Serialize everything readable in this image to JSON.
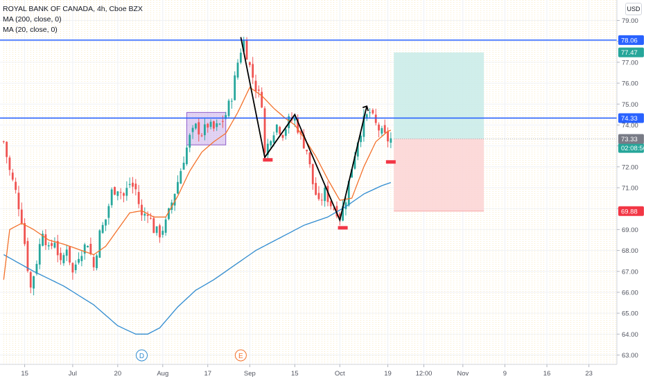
{
  "legend": {
    "symbol": "ROYAL BANK OF CANADA, 4h, Cboe BZX",
    "ma200": "MA (200, close, 0)",
    "ma20": "MA (20, close, 0)"
  },
  "currency": "USD",
  "colors": {
    "up": "#26a69a",
    "down": "#ef5350",
    "ma200": "#2f8bd0",
    "ma20": "#f3702a",
    "hline": "#2962ff",
    "pattern": "#000000",
    "marker": "#f23645",
    "box": "#9c6ade",
    "profit": "#c8ebe7",
    "loss": "#fcd4d4"
  },
  "chart_data": {
    "type": "candlestick",
    "title": "ROYAL BANK OF CANADA, 4h, Cboe BZX",
    "ylim": [
      62.6,
      79.75
    ],
    "y_ticks": [
      63.0,
      64.0,
      65.0,
      66.0,
      67.0,
      68.0,
      69.0,
      70.0,
      71.0,
      72.0,
      73.0,
      74.0,
      75.0,
      76.0,
      77.0,
      78.0,
      79.0
    ],
    "x_ticks": [
      "15",
      "Jul",
      "20",
      "Aug",
      "17",
      "Sep",
      "15",
      "Oct",
      "19",
      "12:00",
      "Nov",
      "9",
      "16",
      "23"
    ],
    "x_tick_index": [
      7,
      23,
      38,
      53,
      68,
      82,
      97,
      112,
      128,
      140,
      153,
      167,
      181,
      195
    ],
    "n_bars": 130,
    "markers": [
      {
        "label": "D",
        "index": 46
      },
      {
        "label": "E",
        "index": 79
      }
    ],
    "price_labels": [
      {
        "value": 78.06,
        "text": "78.06",
        "kind": "hline"
      },
      {
        "value": 77.47,
        "text": "77.47",
        "kind": "profit"
      },
      {
        "value": 74.33,
        "text": "74.33",
        "kind": "hline"
      },
      {
        "value": 73.34,
        "text": "73.34",
        "kind": "entry"
      },
      {
        "value": 72.9,
        "text": "02:08:56",
        "kind": "countdown"
      },
      {
        "value": 73.33,
        "text": "73.33",
        "kind": "last"
      },
      {
        "value": 69.88,
        "text": "69.88",
        "kind": "stop"
      }
    ],
    "horizontal_lines": [
      78.06,
      74.33
    ],
    "position": {
      "entry": 73.34,
      "target": 77.47,
      "stop": 69.88,
      "from_index": 130,
      "to_index": 160
    },
    "rectangle": {
      "from_index": 61,
      "to_index": 74,
      "top": 74.6,
      "bottom": 73.05
    },
    "pattern_line": [
      [
        79,
        78.2
      ],
      [
        87,
        72.45
      ],
      [
        97,
        74.5
      ],
      [
        112,
        69.45
      ],
      [
        121,
        74.9
      ]
    ],
    "bottom_markers": [
      [
        88,
        72.35
      ],
      [
        113,
        69.1
      ],
      [
        129,
        72.25
      ]
    ],
    "close_path": [
      [
        0,
        73.2
      ],
      [
        2,
        71.8
      ],
      [
        4,
        70.8
      ],
      [
        6,
        69.5
      ],
      [
        8,
        67.2
      ],
      [
        9,
        66.2
      ],
      [
        11,
        67.5
      ],
      [
        13,
        69.0
      ],
      [
        15,
        68.0
      ],
      [
        17,
        68.5
      ],
      [
        19,
        67.3
      ],
      [
        21,
        68.2
      ],
      [
        23,
        66.9
      ],
      [
        25,
        67.8
      ],
      [
        28,
        68.4
      ],
      [
        30,
        67.2
      ],
      [
        32,
        68.8
      ],
      [
        34,
        69.5
      ],
      [
        36,
        70.8
      ],
      [
        38,
        71.0
      ],
      [
        40,
        70.6
      ],
      [
        42,
        71.2
      ],
      [
        44,
        70.9
      ],
      [
        46,
        69.6
      ],
      [
        48,
        69.9
      ],
      [
        50,
        69.0
      ],
      [
        52,
        68.8
      ],
      [
        54,
        69.3
      ],
      [
        56,
        70.3
      ],
      [
        58,
        71.3
      ],
      [
        60,
        72.4
      ],
      [
        62,
        73.4
      ],
      [
        64,
        73.9
      ],
      [
        66,
        73.6
      ],
      [
        68,
        74.0
      ],
      [
        70,
        73.8
      ],
      [
        72,
        74.0
      ],
      [
        74,
        74.5
      ],
      [
        76,
        75.4
      ],
      [
        78,
        77.0
      ],
      [
        79,
        77.6
      ],
      [
        80,
        78.0
      ],
      [
        82,
        76.8
      ],
      [
        84,
        75.8
      ],
      [
        86,
        75.1
      ],
      [
        87,
        72.6
      ],
      [
        89,
        73.5
      ],
      [
        91,
        74.0
      ],
      [
        93,
        73.6
      ],
      [
        95,
        74.2
      ],
      [
        97,
        74.3
      ],
      [
        99,
        73.4
      ],
      [
        101,
        72.8
      ],
      [
        103,
        71.2
      ],
      [
        105,
        70.2
      ],
      [
        107,
        70.8
      ],
      [
        109,
        70.2
      ],
      [
        111,
        69.9
      ],
      [
        112,
        69.6
      ],
      [
        114,
        70.5
      ],
      [
        116,
        72.0
      ],
      [
        118,
        73.3
      ],
      [
        120,
        74.2
      ],
      [
        122,
        74.6
      ],
      [
        124,
        74.0
      ],
      [
        126,
        73.6
      ],
      [
        128,
        73.3
      ],
      [
        129,
        73.33
      ]
    ],
    "series": [
      {
        "name": "MA (200, close, 0)",
        "values": [
          [
            0,
            67.8
          ],
          [
            10,
            67.0
          ],
          [
            20,
            66.3
          ],
          [
            30,
            65.4
          ],
          [
            38,
            64.4
          ],
          [
            44,
            64.0
          ],
          [
            48,
            64.0
          ],
          [
            52,
            64.3
          ],
          [
            58,
            65.3
          ],
          [
            64,
            66.1
          ],
          [
            70,
            66.6
          ],
          [
            76,
            67.2
          ],
          [
            84,
            68.0
          ],
          [
            92,
            68.6
          ],
          [
            100,
            69.2
          ],
          [
            108,
            69.6
          ],
          [
            114,
            70.1
          ],
          [
            120,
            70.7
          ],
          [
            126,
            71.1
          ],
          [
            129,
            71.25
          ]
        ]
      },
      {
        "name": "MA (20, close, 0)",
        "values": [
          [
            0,
            66.6
          ],
          [
            2,
            69.0
          ],
          [
            6,
            69.3
          ],
          [
            10,
            69.0
          ],
          [
            15,
            68.5
          ],
          [
            20,
            68.3
          ],
          [
            26,
            68.0
          ],
          [
            30,
            67.8
          ],
          [
            34,
            68.2
          ],
          [
            38,
            69.0
          ],
          [
            42,
            69.8
          ],
          [
            46,
            69.9
          ],
          [
            50,
            69.6
          ],
          [
            54,
            69.6
          ],
          [
            58,
            70.6
          ],
          [
            62,
            71.8
          ],
          [
            66,
            72.7
          ],
          [
            70,
            73.2
          ],
          [
            74,
            73.6
          ],
          [
            78,
            74.6
          ],
          [
            82,
            75.8
          ],
          [
            86,
            75.4
          ],
          [
            90,
            74.8
          ],
          [
            94,
            74.3
          ],
          [
            97,
            74.0
          ],
          [
            100,
            73.4
          ],
          [
            104,
            72.5
          ],
          [
            108,
            71.4
          ],
          [
            112,
            70.4
          ],
          [
            116,
            70.5
          ],
          [
            120,
            72.0
          ],
          [
            124,
            73.2
          ],
          [
            128,
            73.7
          ],
          [
            129,
            73.75
          ]
        ]
      }
    ]
  }
}
